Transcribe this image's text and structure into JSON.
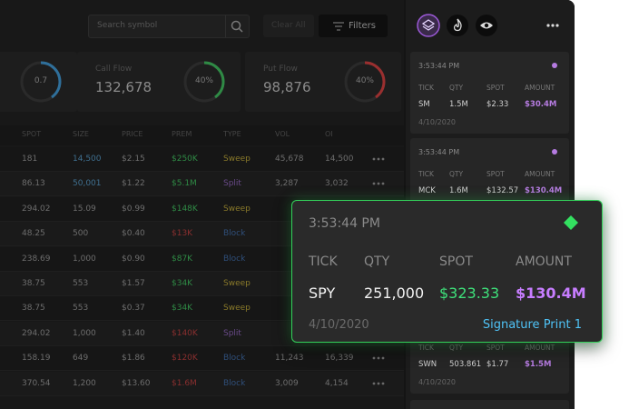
{
  "search": {
    "placeholder": "Search symbol"
  },
  "toolbar": {
    "clear": "Clear All",
    "filters": "Filters"
  },
  "stats": [
    {
      "label": null,
      "value": null,
      "gauge": "0.7"
    },
    {
      "label": "Call Flow",
      "value": "132,678",
      "gauge": "40%"
    },
    {
      "label": "Put Flow",
      "value": "98,876",
      "gauge": "40%"
    }
  ],
  "table": {
    "headers": [
      "SPOT",
      "SIZE",
      "PRICE",
      "PREM",
      "TYPE",
      "VOL",
      "OI"
    ],
    "rows": [
      {
        "cells": [
          "181",
          "14,500",
          "$2.15",
          "$250K",
          "Sweep",
          "45,678",
          "14,500"
        ],
        "size_color": "#3f6f8f",
        "prem_color": "#2f8a45",
        "type_color": "#8a7a2a"
      },
      {
        "cells": [
          "86.13",
          "50,001",
          "$1.22",
          "$5.1M",
          "Split",
          "3,287",
          "3,032"
        ],
        "size_color": "#3f6f8f",
        "prem_color": "#2f8a45",
        "type_color": "#6a4a8a"
      },
      {
        "cells": [
          "294.02",
          "15.09",
          "$0.99",
          "$148K",
          "Sweep"
        ],
        "size_color": "#6d6d6d",
        "prem_color": "#2f8a45",
        "type_color": "#8a7a2a"
      },
      {
        "cells": [
          "48.25",
          "500",
          "$0.40",
          "$13K",
          "Block"
        ],
        "size_color": "#6d6d6d",
        "prem_color": "#8a2f2f",
        "type_color": "#2f4f7a"
      },
      {
        "cells": [
          "238.69",
          "1,000",
          "$0.90",
          "$87K",
          "Block"
        ],
        "size_color": "#6d6d6d",
        "prem_color": "#2f8a45",
        "type_color": "#2f4f7a"
      },
      {
        "cells": [
          "38.75",
          "553",
          "$1.57",
          "$34K",
          "Sweep"
        ],
        "size_color": "#6d6d6d",
        "prem_color": "#2f8a45",
        "type_color": "#8a7a2a"
      },
      {
        "cells": [
          "38.75",
          "553",
          "$0.37",
          "$34K",
          "Sweep"
        ],
        "size_color": "#6d6d6d",
        "prem_color": "#2f8a45",
        "type_color": "#8a7a2a"
      },
      {
        "cells": [
          "294.02",
          "1,000",
          "$1.40",
          "$140K",
          "Split"
        ],
        "size_color": "#6d6d6d",
        "prem_color": "#8a2f2f",
        "type_color": "#6a4a8a"
      },
      {
        "cells": [
          "158.19",
          "649",
          "$1.86",
          "$120K",
          "Block",
          "11,243",
          "16,339"
        ],
        "size_color": "#6d6d6d",
        "prem_color": "#8a2f2f",
        "type_color": "#2f4f7a"
      },
      {
        "cells": [
          "370.54",
          "1,200",
          "$13.60",
          "$1.6M",
          "Block",
          "3,009",
          "4,154"
        ],
        "size_color": "#6d6d6d",
        "prem_color": "#8a2f2f",
        "type_color": "#2f4f7a"
      }
    ]
  },
  "feed": {
    "headers": [
      "TICK",
      "QTY",
      "SPOT",
      "AMOUNT"
    ],
    "cards": [
      {
        "time": "3:53:44 PM",
        "tick": "SM",
        "qty": "1.5M",
        "spot": "$2.33",
        "amount": "$30.4M",
        "date": "4/10/2020"
      },
      {
        "time": "3:53:44 PM",
        "tick": "MCK",
        "qty": "1.6M",
        "spot": "$132.57",
        "amount": "$130.4M"
      },
      {
        "tick": "SWN",
        "qty": "503.861",
        "spot": "$1.77",
        "amount": "$1.5M",
        "date": "4/10/2020"
      }
    ]
  },
  "popup": {
    "time": "3:53:44 PM",
    "headers": [
      "TICK",
      "QTY",
      "SPOT",
      "AMOUNT"
    ],
    "tick": "SPY",
    "qty": "251,000",
    "spot": "$323.33",
    "amount": "$130.4M",
    "date": "4/10/2020",
    "tag": "Signature Print 1"
  }
}
